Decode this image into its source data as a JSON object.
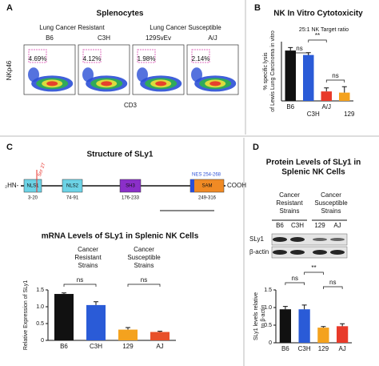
{
  "panel_labels": [
    "A",
    "B",
    "C",
    "D"
  ],
  "chart_data": [
    {
      "type": "flow",
      "title": "Splenocytes",
      "groups": [
        "Lung Cancer Resistant",
        "Lung Cancer Susceptible"
      ],
      "categories": [
        "B6",
        "C3H",
        "129SvEv",
        "A/J"
      ],
      "values": [
        4.69,
        4.12,
        1.98,
        2.14
      ],
      "value_labels": [
        "4.69%",
        "4.12%",
        "1.98%",
        "2.14%"
      ],
      "xlabel": "CD3",
      "ylabel": "NKp46"
    },
    {
      "type": "bar",
      "title": "NK In Vitro Cytotoxicity",
      "annotation": "25:1 NK Target ratio",
      "ylabel": [
        "% specific lysis",
        "of Lewis Lung Carcinoma in vitro"
      ],
      "categories": [
        "B6",
        "C3H",
        "A/J",
        "129"
      ],
      "values": [
        17,
        15.5,
        3.2,
        2.8
      ],
      "errors": [
        1,
        0.8,
        1.2,
        2
      ],
      "colors": [
        "#111111",
        "#2a5bd7",
        "#e83a2a",
        "#f4a21e"
      ],
      "ylim": [
        0,
        20
      ],
      "significance": [
        "ns",
        "**",
        "ns"
      ]
    },
    {
      "type": "bar",
      "title": "mRNA Levels of SLy1 in Splenic NK Cells",
      "groups": [
        [
          "Cancer",
          "Resistant",
          "Strains"
        ],
        [
          "Cancer",
          "Susceptible",
          "Strains"
        ]
      ],
      "ylabel": [
        "Relative Expression of SLy1"
      ],
      "categories": [
        "B6",
        "C3H",
        "129",
        "AJ"
      ],
      "values": [
        1.38,
        1.05,
        0.32,
        0.25
      ],
      "errors": [
        0.03,
        0.1,
        0.06,
        0.02
      ],
      "colors": [
        "#111111",
        "#2a5bd7",
        "#f4a21e",
        "#e8502a"
      ],
      "ylim": [
        0,
        1.5
      ],
      "yticks": [
        0,
        0.5,
        {
          "value": 1,
          "label": "1.0"
        },
        1.5
      ],
      "significance": [
        "ns",
        "ns"
      ]
    },
    {
      "type": "bar",
      "title": [
        "Protein Levels of SLy1 in",
        "Splenic NK Cells"
      ],
      "groups": [
        [
          "Cancer",
          "Resistant",
          "Strains"
        ],
        [
          "Cancer",
          "Susceptible",
          "Strains"
        ]
      ],
      "ylabel": [
        "SLy1 levels relative",
        "to β-actin"
      ],
      "categories": [
        "B6",
        "C3H",
        "129",
        "AJ"
      ],
      "values": [
        0.95,
        0.95,
        0.43,
        0.47
      ],
      "errors": [
        0.08,
        0.12,
        0.03,
        0.07
      ],
      "colors": [
        "#111111",
        "#2a5bd7",
        "#f4a21e",
        "#e83a2a"
      ],
      "ylim": [
        0,
        1.5
      ],
      "yticks": [
        0,
        0.5,
        {
          "value": 1,
          "label": "1.0"
        },
        1.5
      ],
      "significance": [
        "ns",
        "**",
        "ns"
      ]
    }
  ],
  "structure": {
    "title": "Structure of SLy1",
    "n_term": "₂HN-",
    "c_term": "COOH",
    "site": "Ser 27",
    "nes": "NES 254-268",
    "domains": [
      {
        "name": "NLS1",
        "range": "3-20",
        "color": "#6cd3e6"
      },
      {
        "name": "NLS2",
        "range": "74-91",
        "color": "#6cd3e6"
      },
      {
        "name": "SH3",
        "range": "176-233",
        "color": "#8b2fc9"
      },
      {
        "name": "SAM",
        "range": "249-316",
        "color": "#f08a24"
      }
    ]
  },
  "blot": {
    "lanes": [
      "B6",
      "C3H",
      "129",
      "AJ"
    ],
    "rows": [
      "SLy1",
      "β-actin"
    ]
  }
}
